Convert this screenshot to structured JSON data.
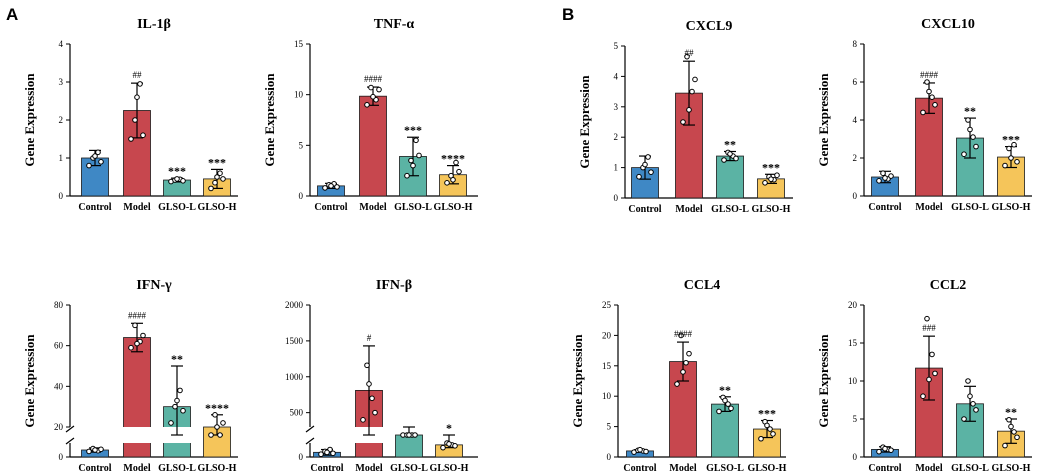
{
  "panels": [
    "A",
    "B"
  ],
  "groups": [
    "Control",
    "Model",
    "GLSO-L",
    "GLSO-H"
  ],
  "colors": [
    "#3f88c5",
    "#c7474e",
    "#5bb3a4",
    "#f5c55a"
  ],
  "ylabel": "Gene Expression",
  "chart_data": [
    {
      "type": "bar",
      "title": "IL-1β",
      "ylabel": "Gene Expression",
      "categories": [
        "Control",
        "Model",
        "GLSO-L",
        "GLSO-H"
      ],
      "values": [
        1.0,
        2.25,
        0.42,
        0.45
      ],
      "errors": [
        0.2,
        0.72,
        0.05,
        0.25
      ],
      "points": [
        [
          0.8,
          1.0,
          1.15,
          0.9,
          1.05
        ],
        [
          1.5,
          2.0,
          2.95,
          1.6,
          2.6
        ],
        [
          0.38,
          0.42,
          0.44,
          0.4,
          0.45
        ],
        [
          0.2,
          0.35,
          0.6,
          0.45,
          0.5
        ]
      ],
      "ylim": [
        0,
        4
      ],
      "yticks": [
        "0",
        "1",
        "2",
        "3",
        "4"
      ],
      "sig": [
        "",
        "##",
        "***",
        "***"
      ]
    },
    {
      "type": "bar",
      "title": "TNF-α",
      "ylabel": "Gene Expression",
      "categories": [
        "Control",
        "Model",
        "GLSO-L",
        "GLSO-H"
      ],
      "values": [
        1.0,
        9.85,
        3.9,
        2.1
      ],
      "errors": [
        0.25,
        0.9,
        1.9,
        0.9
      ],
      "points": [
        [
          0.8,
          1.1,
          1.2,
          0.9,
          1.0
        ],
        [
          9.0,
          10.7,
          9.5,
          10.5,
          9.8
        ],
        [
          2.0,
          3.5,
          5.5,
          4.0,
          3.0
        ],
        [
          1.3,
          2.0,
          3.3,
          2.4,
          1.6
        ]
      ],
      "ylim": [
        0,
        15
      ],
      "yticks": [
        "0",
        "5",
        "10",
        "15"
      ],
      "sig": [
        "",
        "####",
        "***",
        "****"
      ]
    },
    {
      "type": "bar",
      "title": "CXCL9",
      "ylabel": "Gene Expression",
      "categories": [
        "Control",
        "Model",
        "GLSO-L",
        "GLSO-H"
      ],
      "values": [
        1.0,
        3.45,
        1.38,
        0.63
      ],
      "errors": [
        0.38,
        1.05,
        0.15,
        0.15
      ],
      "points": [
        [
          0.7,
          1.0,
          1.35,
          0.85,
          1.1
        ],
        [
          2.5,
          4.65,
          3.5,
          3.9,
          2.9
        ],
        [
          1.25,
          1.5,
          1.38,
          1.3,
          1.45
        ],
        [
          0.5,
          0.7,
          0.6,
          0.75,
          0.62
        ]
      ],
      "ylim": [
        0,
        5
      ],
      "yticks": [
        "0",
        "1",
        "2",
        "3",
        "4",
        "5"
      ],
      "sig": [
        "",
        "##",
        "**",
        "***"
      ]
    },
    {
      "type": "bar",
      "title": "CXCL10",
      "ylabel": "Gene Expression",
      "categories": [
        "Control",
        "Model",
        "GLSO-L",
        "GLSO-H"
      ],
      "values": [
        1.0,
        5.15,
        3.05,
        2.05
      ],
      "errors": [
        0.3,
        0.8,
        1.05,
        0.55
      ],
      "points": [
        [
          0.8,
          1.2,
          0.9,
          1.05,
          0.95
        ],
        [
          4.4,
          6.0,
          5.2,
          4.8,
          5.5
        ],
        [
          2.2,
          4.0,
          3.1,
          2.6,
          3.5
        ],
        [
          1.6,
          2.5,
          2.7,
          1.8,
          2.0
        ]
      ],
      "ylim": [
        0,
        8
      ],
      "yticks": [
        "0",
        "2",
        "4",
        "6",
        "8"
      ],
      "sig": [
        "",
        "####",
        "**",
        "***"
      ]
    },
    {
      "type": "bar",
      "title": "IFN-γ",
      "ylabel": "Gene Expression",
      "categories": [
        "Control",
        "Model",
        "GLSO-L",
        "GLSO-H"
      ],
      "values": [
        1.0,
        64,
        30,
        20
      ],
      "errors": [
        0.3,
        7,
        20,
        6
      ],
      "points": [
        [
          0.8,
          1.2,
          0.9,
          1.1,
          1.0
        ],
        [
          59,
          70,
          62,
          65,
          61
        ],
        [
          22,
          30,
          38,
          28,
          33
        ],
        [
          15,
          26,
          18,
          22,
          20
        ]
      ],
      "ylim": [
        0,
        80
      ],
      "yticks": [
        "0",
        "20",
        "40",
        "60",
        "80"
      ],
      "axis_break": [
        2,
        20
      ],
      "sig": [
        "",
        "####",
        "**",
        "****"
      ]
    },
    {
      "type": "bar",
      "title": "IFN-β",
      "ylabel": "",
      "categories": [
        "Control",
        "Model",
        "GLSO-L",
        "GLSO-H"
      ],
      "values": [
        50,
        810,
        240,
        130
      ],
      "errors": [
        30,
        620,
        60,
        30
      ],
      "points": [
        [
          30,
          60,
          80,
          40,
          50
        ],
        [
          400,
          1160,
          700,
          500,
          900
        ],
        [
          190,
          280,
          230,
          260,
          240
        ],
        [
          100,
          150,
          130,
          120,
          140
        ]
      ],
      "ylim": [
        0,
        2000
      ],
      "yticks": [
        "0",
        "500",
        "1000",
        "1500",
        "2000"
      ],
      "axis_break": [
        150,
        300
      ],
      "sig": [
        "",
        "#",
        "",
        "*"
      ]
    },
    {
      "type": "bar",
      "title": "CCL4",
      "ylabel": "Gene Expression",
      "categories": [
        "Control",
        "Model",
        "GLSO-L",
        "GLSO-H"
      ],
      "values": [
        1.0,
        15.7,
        8.7,
        4.6
      ],
      "errors": [
        0.2,
        3.2,
        1.2,
        1.4
      ],
      "points": [
        [
          0.8,
          1.1,
          1.0,
          0.9,
          1.2
        ],
        [
          12.0,
          20.0,
          15.5,
          17.0,
          14.0
        ],
        [
          7.5,
          9.8,
          8.7,
          8.0,
          9.3
        ],
        [
          3.0,
          5.8,
          4.6,
          3.8,
          5.2
        ]
      ],
      "ylim": [
        0,
        25
      ],
      "yticks": [
        "0",
        "5",
        "10",
        "15",
        "20",
        "25"
      ],
      "sig": [
        "",
        "####",
        "**",
        "***"
      ]
    },
    {
      "type": "bar",
      "title": "CCL2",
      "ylabel": "Gene Expression",
      "categories": [
        "Control",
        "Model",
        "GLSO-L",
        "GLSO-H"
      ],
      "values": [
        1.0,
        11.7,
        7.0,
        3.4
      ],
      "errors": [
        0.35,
        4.2,
        2.3,
        1.6
      ],
      "points": [
        [
          0.7,
          1.3,
          1.0,
          0.9,
          1.1
        ],
        [
          8.0,
          18.2,
          13.5,
          11.0,
          10.2
        ],
        [
          5.0,
          10.0,
          7.0,
          6.2,
          8.0
        ],
        [
          1.5,
          4.9,
          3.3,
          2.6,
          4.0
        ]
      ],
      "ylim": [
        0,
        20
      ],
      "yticks": [
        "0",
        "5",
        "10",
        "15",
        "20"
      ],
      "sig": [
        "",
        "###",
        "",
        "**"
      ]
    }
  ]
}
